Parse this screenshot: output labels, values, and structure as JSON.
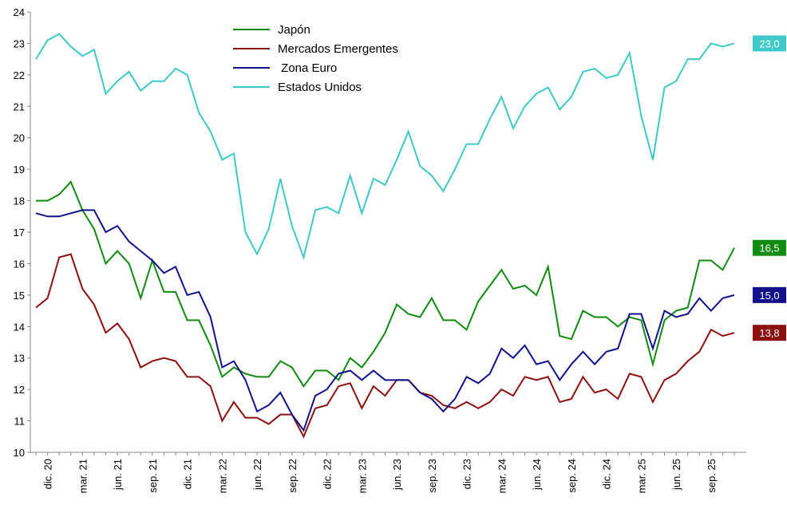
{
  "chart_data": {
    "type": "line",
    "categories": [
      null,
      "dic. 20",
      null,
      null,
      "mar. 21",
      null,
      null,
      "jun. 21",
      null,
      null,
      "sep. 21",
      null,
      null,
      "dic. 21",
      null,
      null,
      "mar. 22",
      null,
      null,
      "jun. 22",
      null,
      null,
      "sep. 22",
      null,
      null,
      "dic. 22",
      null,
      null,
      "mar. 23",
      null,
      null,
      "jun. 23",
      null,
      null,
      "sep. 23",
      null,
      null,
      "dic. 23",
      null,
      null,
      "mar. 24",
      null,
      null,
      "jun. 24",
      null,
      null,
      "sep. 24",
      null,
      null,
      "dic. 24",
      null,
      null,
      "mar. 25",
      null,
      null,
      "jun. 25",
      null,
      null,
      "sep. 25",
      null,
      null
    ],
    "ylim": [
      10,
      24
    ],
    "yticks": [
      10,
      11,
      12,
      13,
      14,
      15,
      16,
      17,
      18,
      19,
      20,
      21,
      22,
      23,
      24
    ],
    "series": [
      {
        "name": "Japón",
        "color": "#108a10",
        "values": [
          18.0,
          18.0,
          18.2,
          18.6,
          17.7,
          17.1,
          16.0,
          16.4,
          16.0,
          14.9,
          16.1,
          15.1,
          15.1,
          14.2,
          14.2,
          13.4,
          12.4,
          12.7,
          12.5,
          12.4,
          12.4,
          12.9,
          12.7,
          12.1,
          12.6,
          12.6,
          12.3,
          13.0,
          12.7,
          13.2,
          13.8,
          14.7,
          14.4,
          14.3,
          14.9,
          14.2,
          14.2,
          13.9,
          14.8,
          15.3,
          15.8,
          15.2,
          15.3,
          15.0,
          15.9,
          13.7,
          13.6,
          14.5,
          14.3,
          14.3,
          14.0,
          14.3,
          14.2,
          12.8,
          14.2,
          14.5,
          14.6,
          16.1,
          16.1,
          15.8,
          16.5
        ],
        "value_labels": [
          null,
          null,
          null,
          null,
          null,
          null,
          null,
          null,
          null,
          null,
          null,
          null,
          null,
          null,
          null,
          null,
          null,
          null,
          null,
          null,
          null,
          null,
          null,
          null,
          null,
          null,
          null,
          null,
          null,
          null,
          null,
          null,
          null,
          null,
          null,
          null,
          null,
          null,
          null,
          null,
          null,
          null,
          null,
          null,
          null,
          null,
          null,
          null,
          null,
          null,
          null,
          null,
          null,
          null,
          null,
          null,
          null,
          null,
          null,
          null,
          "16,5"
        ]
      },
      {
        "name": "Mercados Emergentes",
        "color": "#8b1010",
        "values": [
          14.6,
          14.9,
          16.2,
          16.3,
          15.2,
          14.7,
          13.8,
          14.1,
          13.6,
          12.7,
          12.9,
          13.0,
          12.9,
          12.4,
          12.4,
          12.1,
          11.0,
          11.6,
          11.1,
          11.1,
          10.9,
          11.2,
          11.2,
          10.5,
          11.4,
          11.5,
          12.1,
          12.2,
          11.4,
          12.1,
          11.8,
          12.3,
          12.3,
          11.9,
          11.8,
          11.5,
          11.4,
          11.6,
          11.4,
          11.6,
          12.0,
          11.8,
          12.4,
          12.3,
          12.4,
          11.6,
          11.7,
          12.4,
          11.9,
          12.0,
          11.7,
          12.5,
          12.4,
          11.6,
          12.3,
          12.5,
          12.9,
          13.2,
          13.9,
          13.7,
          13.8
        ],
        "value_labels": [
          null,
          null,
          null,
          null,
          null,
          null,
          null,
          null,
          null,
          null,
          null,
          null,
          null,
          null,
          null,
          null,
          null,
          null,
          null,
          null,
          null,
          null,
          null,
          null,
          null,
          null,
          null,
          null,
          null,
          null,
          null,
          null,
          null,
          null,
          null,
          null,
          null,
          null,
          null,
          null,
          null,
          null,
          null,
          null,
          null,
          null,
          null,
          null,
          null,
          null,
          null,
          null,
          null,
          null,
          null,
          null,
          null,
          null,
          null,
          null,
          "13,8"
        ]
      },
      {
        "name": " Zona Euro",
        "color": "#10108a",
        "values": [
          17.6,
          17.5,
          17.5,
          17.6,
          17.7,
          17.7,
          17.0,
          17.2,
          16.7,
          16.4,
          16.1,
          15.7,
          15.9,
          15.0,
          15.1,
          14.3,
          12.7,
          12.9,
          12.3,
          11.3,
          11.5,
          11.9,
          11.2,
          10.7,
          11.8,
          12.0,
          12.5,
          12.6,
          12.3,
          12.6,
          12.3,
          12.3,
          12.3,
          11.9,
          11.7,
          11.3,
          11.7,
          12.4,
          12.2,
          12.5,
          13.3,
          13.0,
          13.4,
          12.8,
          12.9,
          12.3,
          12.8,
          13.2,
          12.8,
          13.2,
          13.3,
          14.4,
          14.4,
          13.3,
          14.5,
          14.3,
          14.4,
          14.9,
          14.5,
          14.9,
          15.0
        ],
        "value_labels": [
          null,
          null,
          null,
          null,
          null,
          null,
          null,
          null,
          null,
          null,
          null,
          null,
          null,
          null,
          null,
          null,
          null,
          null,
          null,
          null,
          null,
          null,
          null,
          null,
          null,
          null,
          null,
          null,
          null,
          null,
          null,
          null,
          null,
          null,
          null,
          null,
          null,
          null,
          null,
          null,
          null,
          null,
          null,
          null,
          null,
          null,
          null,
          null,
          null,
          null,
          null,
          null,
          null,
          null,
          null,
          null,
          null,
          null,
          null,
          null,
          "15,0"
        ]
      },
      {
        "name": "Estados Unidos",
        "color": "#3ec8c8",
        "values": [
          22.5,
          23.1,
          23.3,
          22.9,
          22.6,
          22.8,
          21.4,
          21.8,
          22.1,
          21.5,
          21.8,
          21.8,
          22.2,
          22.0,
          20.8,
          20.2,
          19.3,
          19.5,
          17.0,
          16.3,
          17.1,
          18.7,
          17.2,
          16.2,
          17.7,
          17.8,
          17.6,
          18.8,
          17.6,
          18.7,
          18.5,
          19.3,
          20.2,
          19.1,
          18.8,
          18.3,
          19.0,
          19.8,
          19.8,
          20.6,
          21.3,
          20.3,
          21.0,
          21.4,
          21.6,
          20.9,
          21.3,
          22.1,
          22.2,
          21.9,
          22.0,
          22.7,
          20.7,
          19.3,
          21.6,
          21.8,
          22.5,
          22.5,
          23.0,
          22.9,
          23.0
        ],
        "value_labels": [
          null,
          null,
          null,
          null,
          null,
          null,
          null,
          null,
          null,
          null,
          null,
          null,
          null,
          null,
          null,
          null,
          null,
          null,
          null,
          null,
          null,
          null,
          null,
          null,
          null,
          null,
          null,
          null,
          null,
          null,
          null,
          null,
          null,
          null,
          null,
          null,
          null,
          null,
          null,
          null,
          null,
          null,
          null,
          null,
          null,
          null,
          null,
          null,
          null,
          null,
          null,
          null,
          null,
          null,
          null,
          null,
          null,
          null,
          null,
          null,
          "23,0"
        ]
      }
    ]
  }
}
